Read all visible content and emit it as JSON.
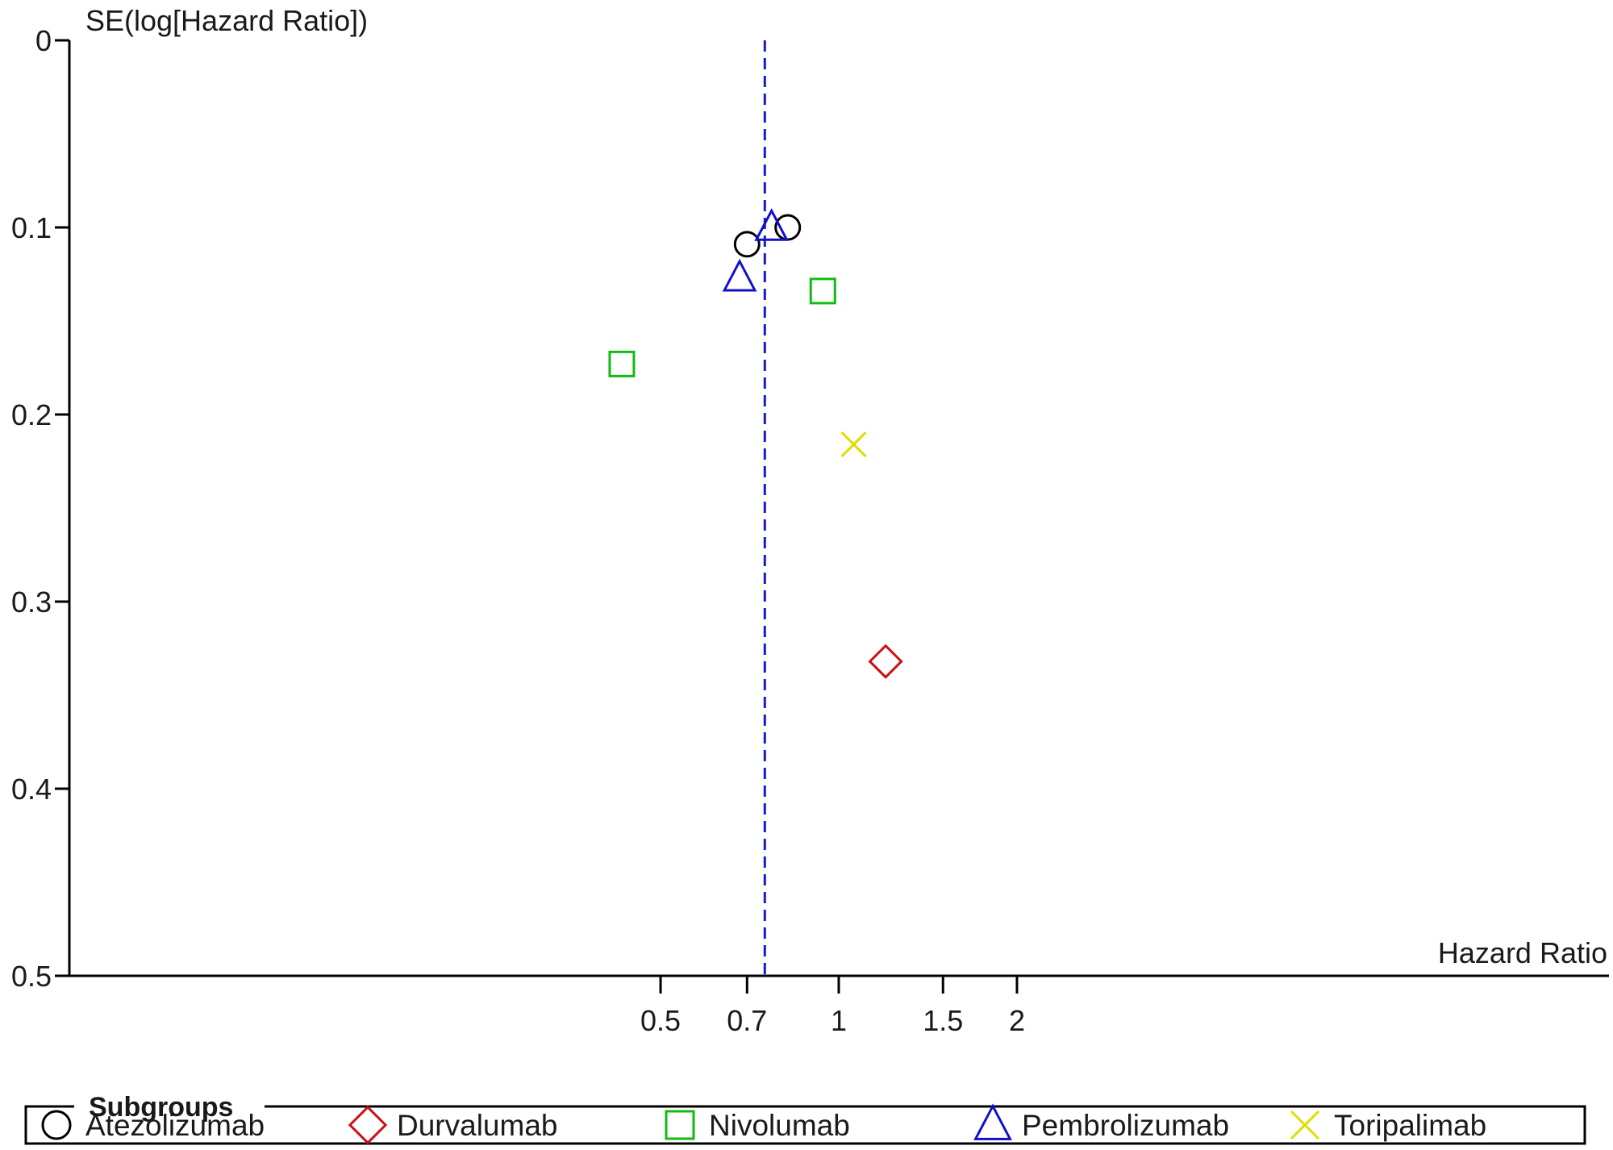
{
  "chart_data": {
    "type": "scatter",
    "subtype": "funnel-plot",
    "title": "",
    "xlabel": "Hazard Ratio",
    "ylabel": "SE(log[Hazard Ratio])",
    "x_scale": "log",
    "y_reversed": true,
    "ylim": [
      0,
      0.5
    ],
    "x_ticks": [
      0.5,
      0.7,
      1,
      1.5,
      2
    ],
    "x_tick_labels": [
      "0.5",
      "0.7",
      "1",
      "1.5",
      "2"
    ],
    "y_ticks": [
      0,
      0.1,
      0.2,
      0.3,
      0.4,
      0.5
    ],
    "y_tick_labels": [
      "0",
      "0.1",
      "0.2",
      "0.3",
      "0.4",
      "0.5"
    ],
    "grid": false,
    "pooled_estimate": {
      "x": 0.75,
      "style": "dashed",
      "color": "#1a1acc"
    },
    "legend": {
      "title": "Subgroups",
      "position": "bottom",
      "items": [
        {
          "name": "Atezolizumab",
          "marker": "circle",
          "color": "#000000"
        },
        {
          "name": "Durvalumab",
          "marker": "diamond",
          "color": "#cc1111"
        },
        {
          "name": "Nivolumab",
          "marker": "square",
          "color": "#11bb11"
        },
        {
          "name": "Pembrolizumab",
          "marker": "triangle",
          "color": "#1111cc"
        },
        {
          "name": "Toripalimab",
          "marker": "x",
          "color": "#dddd00"
        }
      ]
    },
    "series": [
      {
        "name": "Atezolizumab",
        "marker": "circle",
        "color": "#000000",
        "points": [
          {
            "x": 0.7,
            "y": 0.109
          },
          {
            "x": 0.82,
            "y": 0.1
          }
        ]
      },
      {
        "name": "Durvalumab",
        "marker": "diamond",
        "color": "#cc1111",
        "points": [
          {
            "x": 1.2,
            "y": 0.332
          }
        ]
      },
      {
        "name": "Nivolumab",
        "marker": "square",
        "color": "#11bb11",
        "points": [
          {
            "x": 0.43,
            "y": 0.173
          },
          {
            "x": 0.94,
            "y": 0.134
          }
        ]
      },
      {
        "name": "Pembrolizumab",
        "marker": "triangle",
        "color": "#1111cc",
        "points": [
          {
            "x": 0.68,
            "y": 0.127
          },
          {
            "x": 0.77,
            "y": 0.1
          }
        ]
      },
      {
        "name": "Toripalimab",
        "marker": "x",
        "color": "#dddd00",
        "points": [
          {
            "x": 1.06,
            "y": 0.216
          }
        ]
      }
    ]
  }
}
